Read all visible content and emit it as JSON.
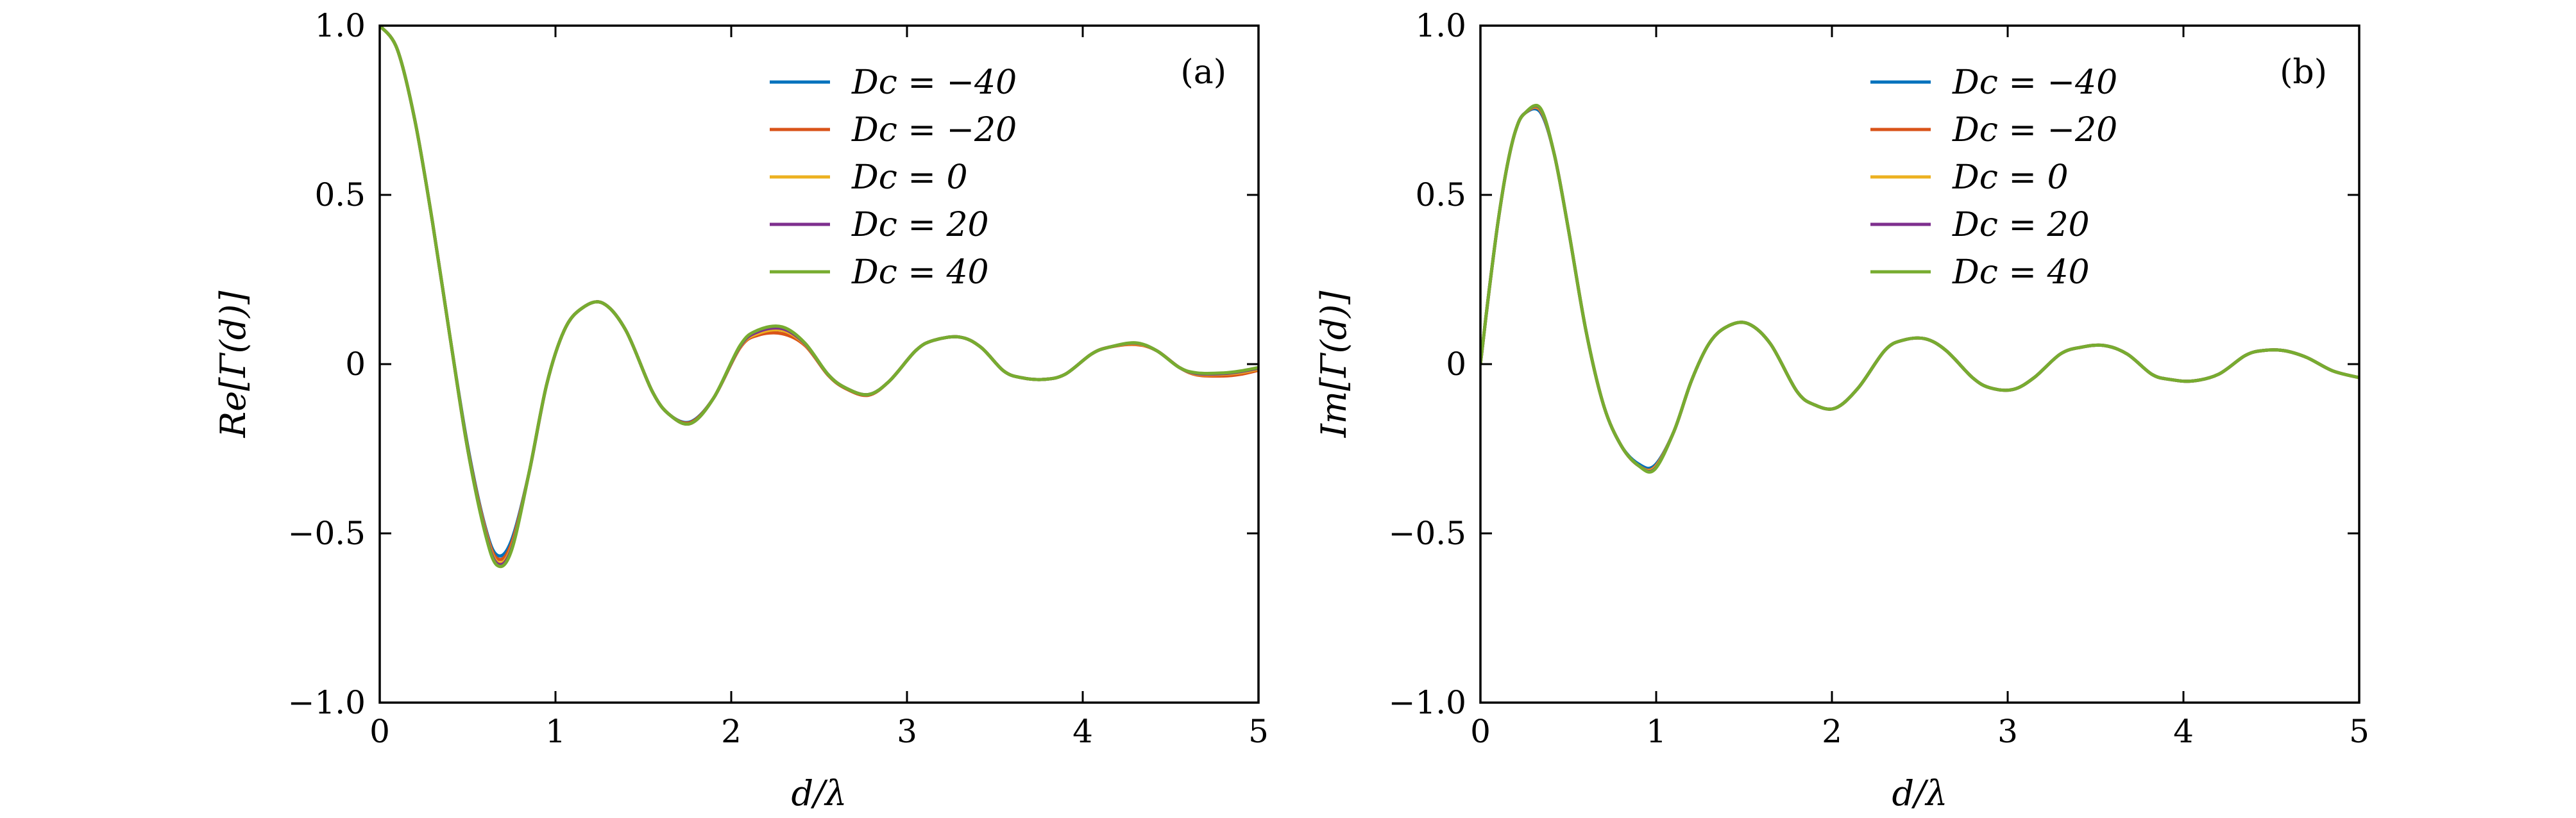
{
  "chart_data": [
    {
      "type": "line",
      "panel_label": "(a)",
      "xlabel": "d/λ",
      "ylabel": "Re[Γ(d)]",
      "xlim": [
        0,
        5
      ],
      "ylim": [
        -1.0,
        1.0
      ],
      "xticks": [
        0,
        1,
        2,
        3,
        4,
        5
      ],
      "xtick_labels": [
        "0",
        "1",
        "2",
        "3",
        "4",
        "5"
      ],
      "yticks": [
        -1.0,
        -0.5,
        0,
        0.5,
        1.0
      ],
      "ytick_labels": [
        "−1.0",
        "−0.5",
        "0",
        "0.5",
        "1.0"
      ],
      "grid": false,
      "legend_position": "top-right",
      "series": [
        {
          "name": "Dc = −40",
          "color": "#0072BD",
          "x": [
            0,
            0.1,
            0.2,
            0.3,
            0.4,
            0.5,
            0.6,
            0.67,
            0.75,
            0.85,
            0.95,
            1.05,
            1.15,
            1.27,
            1.4,
            1.55,
            1.65,
            1.77,
            1.9,
            2.05,
            2.15,
            2.29,
            2.42,
            2.55,
            2.65,
            2.78,
            2.9,
            3.05,
            3.15,
            3.3,
            3.42,
            3.55,
            3.65,
            3.78,
            3.9,
            4.05,
            4.15,
            4.3,
            4.42,
            4.55,
            4.65,
            4.8,
            4.9,
            5.0
          ],
          "y": [
            1.0,
            0.93,
            0.72,
            0.42,
            0.08,
            -0.24,
            -0.48,
            -0.565,
            -0.52,
            -0.32,
            -0.06,
            0.1,
            0.165,
            0.18,
            0.1,
            -0.08,
            -0.15,
            -0.17,
            -0.1,
            0.05,
            0.09,
            0.1,
            0.06,
            -0.03,
            -0.07,
            -0.09,
            -0.05,
            0.04,
            0.07,
            0.08,
            0.05,
            -0.02,
            -0.04,
            -0.045,
            -0.03,
            0.03,
            0.05,
            0.06,
            0.04,
            -0.01,
            -0.03,
            -0.03,
            -0.025,
            -0.015
          ]
        },
        {
          "name": "Dc = −20",
          "color": "#D95319",
          "x": [
            0,
            0.1,
            0.2,
            0.3,
            0.4,
            0.5,
            0.6,
            0.67,
            0.75,
            0.85,
            0.95,
            1.05,
            1.15,
            1.27,
            1.4,
            1.55,
            1.65,
            1.77,
            1.9,
            2.05,
            2.15,
            2.29,
            2.42,
            2.55,
            2.65,
            2.78,
            2.9,
            3.05,
            3.15,
            3.3,
            3.42,
            3.55,
            3.65,
            3.78,
            3.9,
            4.05,
            4.15,
            4.3,
            4.42,
            4.55,
            4.65,
            4.8,
            4.9,
            5.0
          ],
          "y": [
            1.0,
            0.93,
            0.72,
            0.42,
            0.08,
            -0.245,
            -0.485,
            -0.575,
            -0.53,
            -0.32,
            -0.06,
            0.1,
            0.165,
            0.18,
            0.1,
            -0.08,
            -0.15,
            -0.172,
            -0.1,
            0.048,
            0.085,
            0.09,
            0.055,
            -0.032,
            -0.072,
            -0.092,
            -0.05,
            0.04,
            0.07,
            0.08,
            0.05,
            -0.02,
            -0.04,
            -0.045,
            -0.03,
            0.03,
            0.05,
            0.058,
            0.04,
            -0.01,
            -0.032,
            -0.035,
            -0.03,
            -0.018
          ]
        },
        {
          "name": "Dc = 0",
          "color": "#EDB120",
          "x": [
            0,
            0.1,
            0.2,
            0.3,
            0.4,
            0.5,
            0.6,
            0.67,
            0.75,
            0.85,
            0.95,
            1.05,
            1.15,
            1.27,
            1.4,
            1.55,
            1.65,
            1.77,
            1.9,
            2.05,
            2.15,
            2.29,
            2.42,
            2.55,
            2.65,
            2.78,
            2.9,
            3.05,
            3.15,
            3.3,
            3.42,
            3.55,
            3.65,
            3.78,
            3.9,
            4.05,
            4.15,
            4.3,
            4.42,
            4.55,
            4.65,
            4.8,
            4.9,
            5.0
          ],
          "y": [
            1.0,
            0.93,
            0.72,
            0.42,
            0.08,
            -0.25,
            -0.49,
            -0.585,
            -0.54,
            -0.32,
            -0.06,
            0.1,
            0.165,
            0.18,
            0.1,
            -0.08,
            -0.15,
            -0.175,
            -0.1,
            0.05,
            0.09,
            0.1,
            0.058,
            -0.03,
            -0.07,
            -0.09,
            -0.05,
            0.04,
            0.07,
            0.08,
            0.05,
            -0.02,
            -0.04,
            -0.045,
            -0.03,
            0.03,
            0.05,
            0.06,
            0.04,
            -0.01,
            -0.03,
            -0.03,
            -0.025,
            -0.015
          ]
        },
        {
          "name": "Dc = 20",
          "color": "#7E2F8E",
          "x": [
            0,
            0.1,
            0.2,
            0.3,
            0.4,
            0.5,
            0.6,
            0.67,
            0.75,
            0.85,
            0.95,
            1.05,
            1.15,
            1.27,
            1.4,
            1.55,
            1.65,
            1.77,
            1.9,
            2.05,
            2.15,
            2.29,
            2.42,
            2.55,
            2.65,
            2.78,
            2.9,
            3.05,
            3.15,
            3.3,
            3.42,
            3.55,
            3.65,
            3.78,
            3.9,
            4.05,
            4.15,
            4.3,
            4.42,
            4.55,
            4.65,
            4.8,
            4.9,
            5.0
          ],
          "y": [
            1.0,
            0.93,
            0.72,
            0.42,
            0.08,
            -0.25,
            -0.495,
            -0.59,
            -0.545,
            -0.32,
            -0.06,
            0.1,
            0.165,
            0.18,
            0.1,
            -0.08,
            -0.15,
            -0.175,
            -0.1,
            0.052,
            0.095,
            0.105,
            0.06,
            -0.03,
            -0.07,
            -0.09,
            -0.05,
            0.04,
            0.07,
            0.08,
            0.05,
            -0.02,
            -0.04,
            -0.045,
            -0.03,
            0.03,
            0.05,
            0.062,
            0.04,
            -0.01,
            -0.028,
            -0.028,
            -0.022,
            -0.012
          ]
        },
        {
          "name": "Dc = 40",
          "color": "#77AC30",
          "x": [
            0,
            0.1,
            0.2,
            0.3,
            0.4,
            0.5,
            0.6,
            0.67,
            0.75,
            0.85,
            0.95,
            1.05,
            1.15,
            1.27,
            1.4,
            1.55,
            1.65,
            1.77,
            1.9,
            2.05,
            2.15,
            2.29,
            2.42,
            2.55,
            2.65,
            2.78,
            2.9,
            3.05,
            3.15,
            3.3,
            3.42,
            3.55,
            3.65,
            3.78,
            3.9,
            4.05,
            4.15,
            4.3,
            4.42,
            4.55,
            4.65,
            4.8,
            4.9,
            5.0
          ],
          "y": [
            1.0,
            0.93,
            0.72,
            0.42,
            0.08,
            -0.25,
            -0.5,
            -0.595,
            -0.55,
            -0.32,
            -0.06,
            0.1,
            0.165,
            0.18,
            0.1,
            -0.08,
            -0.15,
            -0.175,
            -0.1,
            0.055,
            0.1,
            0.11,
            0.062,
            -0.03,
            -0.07,
            -0.09,
            -0.05,
            0.04,
            0.07,
            0.08,
            0.05,
            -0.02,
            -0.04,
            -0.045,
            -0.03,
            0.03,
            0.05,
            0.063,
            0.04,
            -0.01,
            -0.026,
            -0.026,
            -0.02,
            -0.01
          ]
        }
      ]
    },
    {
      "type": "line",
      "panel_label": "(b)",
      "xlabel": "d/λ",
      "ylabel": "Im[Γ(d)]",
      "xlim": [
        0,
        5
      ],
      "ylim": [
        -1.0,
        1.0
      ],
      "xticks": [
        0,
        1,
        2,
        3,
        4,
        5
      ],
      "xtick_labels": [
        "0",
        "1",
        "2",
        "3",
        "4",
        "5"
      ],
      "yticks": [
        -1.0,
        -0.5,
        0,
        0.5,
        1.0
      ],
      "ytick_labels": [
        "−1.0",
        "−0.5",
        "0",
        "0.5",
        "1.0"
      ],
      "grid": false,
      "legend_position": "top-right",
      "series": [
        {
          "name": "Dc = −40",
          "color": "#0072BD",
          "x": [
            0,
            0.05,
            0.1,
            0.15,
            0.2,
            0.25,
            0.34,
            0.42,
            0.5,
            0.6,
            0.7,
            0.8,
            0.9,
            0.99,
            1.1,
            1.2,
            1.3,
            1.4,
            1.52,
            1.65,
            1.8,
            1.9,
            2.02,
            2.15,
            2.3,
            2.4,
            2.53,
            2.65,
            2.8,
            2.9,
            3.03,
            3.15,
            3.3,
            3.42,
            3.55,
            3.68,
            3.82,
            3.92,
            4.05,
            4.2,
            4.35,
            4.45,
            4.57,
            4.7,
            4.85,
            5.0
          ],
          "y": [
            0.0,
            0.22,
            0.42,
            0.58,
            0.69,
            0.74,
            0.745,
            0.62,
            0.4,
            0.1,
            -0.12,
            -0.24,
            -0.295,
            -0.3,
            -0.2,
            -0.05,
            0.06,
            0.11,
            0.12,
            0.06,
            -0.08,
            -0.12,
            -0.13,
            -0.07,
            0.04,
            0.07,
            0.075,
            0.04,
            -0.04,
            -0.07,
            -0.075,
            -0.04,
            0.03,
            0.05,
            0.055,
            0.03,
            -0.03,
            -0.045,
            -0.05,
            -0.03,
            0.025,
            0.04,
            0.04,
            0.02,
            -0.02,
            -0.04
          ]
        },
        {
          "name": "Dc = −20",
          "color": "#D95319",
          "x": [
            0,
            0.05,
            0.1,
            0.15,
            0.2,
            0.25,
            0.34,
            0.42,
            0.5,
            0.6,
            0.7,
            0.8,
            0.9,
            0.99,
            1.1,
            1.2,
            1.3,
            1.4,
            1.52,
            1.65,
            1.8,
            1.9,
            2.02,
            2.15,
            2.3,
            2.4,
            2.53,
            2.65,
            2.8,
            2.9,
            3.03,
            3.15,
            3.3,
            3.42,
            3.55,
            3.68,
            3.82,
            3.92,
            4.05,
            4.2,
            4.35,
            4.45,
            4.57,
            4.7,
            4.85,
            5.0
          ],
          "y": [
            0.0,
            0.22,
            0.42,
            0.58,
            0.69,
            0.74,
            0.75,
            0.62,
            0.4,
            0.1,
            -0.12,
            -0.24,
            -0.3,
            -0.305,
            -0.2,
            -0.05,
            0.06,
            0.11,
            0.12,
            0.06,
            -0.08,
            -0.12,
            -0.13,
            -0.07,
            0.04,
            0.07,
            0.075,
            0.04,
            -0.04,
            -0.07,
            -0.075,
            -0.04,
            0.03,
            0.05,
            0.055,
            0.03,
            -0.03,
            -0.045,
            -0.05,
            -0.03,
            0.025,
            0.04,
            0.04,
            0.02,
            -0.02,
            -0.04
          ]
        },
        {
          "name": "Dc = 0",
          "color": "#EDB120",
          "x": [
            0,
            0.05,
            0.1,
            0.15,
            0.2,
            0.25,
            0.34,
            0.42,
            0.5,
            0.6,
            0.7,
            0.8,
            0.9,
            0.99,
            1.1,
            1.2,
            1.3,
            1.4,
            1.52,
            1.65,
            1.8,
            1.9,
            2.02,
            2.15,
            2.3,
            2.4,
            2.53,
            2.65,
            2.8,
            2.9,
            3.03,
            3.15,
            3.3,
            3.42,
            3.55,
            3.68,
            3.82,
            3.92,
            4.05,
            4.2,
            4.35,
            4.45,
            4.57,
            4.7,
            4.85,
            5.0
          ],
          "y": [
            0.0,
            0.22,
            0.42,
            0.58,
            0.69,
            0.74,
            0.752,
            0.62,
            0.4,
            0.1,
            -0.12,
            -0.24,
            -0.3,
            -0.307,
            -0.2,
            -0.05,
            0.06,
            0.11,
            0.12,
            0.06,
            -0.08,
            -0.12,
            -0.13,
            -0.07,
            0.04,
            0.07,
            0.075,
            0.04,
            -0.04,
            -0.07,
            -0.075,
            -0.04,
            0.03,
            0.05,
            0.055,
            0.03,
            -0.03,
            -0.045,
            -0.05,
            -0.03,
            0.025,
            0.04,
            0.04,
            0.02,
            -0.02,
            -0.04
          ]
        },
        {
          "name": "Dc = 20",
          "color": "#7E2F8E",
          "x": [
            0,
            0.05,
            0.1,
            0.15,
            0.2,
            0.25,
            0.34,
            0.42,
            0.5,
            0.6,
            0.7,
            0.8,
            0.9,
            0.99,
            1.1,
            1.2,
            1.3,
            1.4,
            1.52,
            1.65,
            1.8,
            1.9,
            2.02,
            2.15,
            2.3,
            2.4,
            2.53,
            2.65,
            2.8,
            2.9,
            3.03,
            3.15,
            3.3,
            3.42,
            3.55,
            3.68,
            3.82,
            3.92,
            4.05,
            4.2,
            4.35,
            4.45,
            4.57,
            4.7,
            4.85,
            5.0
          ],
          "y": [
            0.0,
            0.22,
            0.42,
            0.58,
            0.69,
            0.74,
            0.755,
            0.62,
            0.4,
            0.1,
            -0.12,
            -0.24,
            -0.3,
            -0.31,
            -0.2,
            -0.05,
            0.06,
            0.11,
            0.12,
            0.06,
            -0.08,
            -0.12,
            -0.13,
            -0.07,
            0.04,
            0.07,
            0.075,
            0.04,
            -0.04,
            -0.07,
            -0.075,
            -0.04,
            0.03,
            0.05,
            0.055,
            0.03,
            -0.03,
            -0.045,
            -0.05,
            -0.03,
            0.025,
            0.04,
            0.04,
            0.02,
            -0.02,
            -0.04
          ]
        },
        {
          "name": "Dc = 40",
          "color": "#77AC30",
          "x": [
            0,
            0.05,
            0.1,
            0.15,
            0.2,
            0.25,
            0.34,
            0.42,
            0.5,
            0.6,
            0.7,
            0.8,
            0.9,
            0.99,
            1.1,
            1.2,
            1.3,
            1.4,
            1.52,
            1.65,
            1.8,
            1.9,
            2.02,
            2.15,
            2.3,
            2.4,
            2.53,
            2.65,
            2.8,
            2.9,
            3.03,
            3.15,
            3.3,
            3.42,
            3.55,
            3.68,
            3.82,
            3.92,
            4.05,
            4.2,
            4.35,
            4.45,
            4.57,
            4.7,
            4.85,
            5.0
          ],
          "y": [
            0.0,
            0.22,
            0.42,
            0.58,
            0.69,
            0.74,
            0.757,
            0.62,
            0.4,
            0.1,
            -0.12,
            -0.24,
            -0.3,
            -0.312,
            -0.2,
            -0.05,
            0.06,
            0.11,
            0.12,
            0.06,
            -0.08,
            -0.12,
            -0.13,
            -0.07,
            0.04,
            0.07,
            0.075,
            0.04,
            -0.04,
            -0.07,
            -0.075,
            -0.04,
            0.03,
            0.05,
            0.055,
            0.03,
            -0.03,
            -0.045,
            -0.05,
            -0.03,
            0.025,
            0.04,
            0.04,
            0.02,
            -0.02,
            -0.04
          ]
        }
      ]
    }
  ]
}
